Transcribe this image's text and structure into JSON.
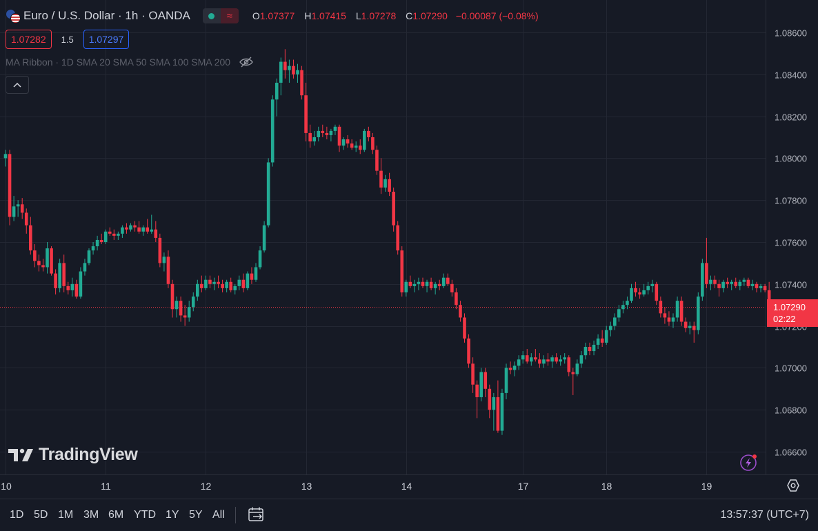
{
  "header": {
    "symbol_title": "Euro / U.S. Dollar · 1h · OANDA",
    "ohlc": {
      "o_label": "O",
      "o_value": "1.07377",
      "h_label": "H",
      "h_value": "1.07415",
      "l_label": "L",
      "l_value": "1.07278",
      "c_label": "C",
      "c_value": "1.07290",
      "change": "−0.00087 (−0.08%)"
    }
  },
  "trade": {
    "bid": "1.07282",
    "spread": "1.5",
    "ask": "1.07297"
  },
  "indicator": {
    "label": "MA Ribbon · 1D SMA 20 SMA 50 SMA 100 SMA 200"
  },
  "last_price": {
    "value": "1.07290",
    "countdown": "02:22"
  },
  "brand": {
    "name": "TradingView"
  },
  "timeframes": [
    "1D",
    "5D",
    "1M",
    "3M",
    "6M",
    "YTD",
    "1Y",
    "5Y",
    "All"
  ],
  "clock": "13:57:37 (UTC+7)",
  "colors": {
    "up": "#22ab94",
    "down": "#f23645",
    "background": "#161a25",
    "grid": "#232733",
    "axis_text": "#b2b5be"
  },
  "chart_data": {
    "type": "candlestick",
    "interval": "1h",
    "y_ticks": [
      "1.08600",
      "1.08400",
      "1.08200",
      "1.08000",
      "1.07800",
      "1.07600",
      "1.07400",
      "1.07200",
      "1.07000",
      "1.06800",
      "1.06600"
    ],
    "ylim": [
      1.0652,
      1.0869
    ],
    "x_ticks": [
      {
        "label": "10",
        "bar": 0
      },
      {
        "label": "11",
        "bar": 24
      },
      {
        "label": "12",
        "bar": 48
      },
      {
        "label": "13",
        "bar": 72
      },
      {
        "label": "14",
        "bar": 96
      },
      {
        "label": "17",
        "bar": 124
      },
      {
        "label": "18",
        "bar": 144
      },
      {
        "label": "19",
        "bar": 168
      }
    ],
    "candles": [
      [
        1.08,
        1.0804,
        1.0796,
        1.0802
      ],
      [
        1.0802,
        1.0804,
        1.0768,
        1.0772
      ],
      [
        1.0772,
        1.0782,
        1.077,
        1.0777
      ],
      [
        1.0777,
        1.078,
        1.0772,
        1.0778
      ],
      [
        1.0778,
        1.0781,
        1.0771,
        1.0774
      ],
      [
        1.0774,
        1.0776,
        1.0764,
        1.0768
      ],
      [
        1.0768,
        1.0772,
        1.0754,
        1.0756
      ],
      [
        1.0756,
        1.0759,
        1.0748,
        1.0751
      ],
      [
        1.0751,
        1.0754,
        1.0746,
        1.0749
      ],
      [
        1.0749,
        1.0752,
        1.0746,
        1.0748
      ],
      [
        1.0748,
        1.076,
        1.0745,
        1.0757
      ],
      [
        1.0757,
        1.0758,
        1.0744,
        1.0745
      ],
      [
        1.0745,
        1.0747,
        1.0735,
        1.0738
      ],
      [
        1.0738,
        1.0752,
        1.0736,
        1.075
      ],
      [
        1.075,
        1.0754,
        1.0736,
        1.0739
      ],
      [
        1.0739,
        1.0741,
        1.0735,
        1.0737
      ],
      [
        1.0737,
        1.0743,
        1.0734,
        1.074
      ],
      [
        1.074,
        1.0742,
        1.0733,
        1.0734
      ],
      [
        1.0734,
        1.0748,
        1.0733,
        1.0746
      ],
      [
        1.0746,
        1.0752,
        1.0744,
        1.075
      ],
      [
        1.075,
        1.0757,
        1.0749,
        1.0756
      ],
      [
        1.0756,
        1.076,
        1.0754,
        1.0758
      ],
      [
        1.0758,
        1.0763,
        1.0756,
        1.0761
      ],
      [
        1.0761,
        1.0764,
        1.0759,
        1.076
      ],
      [
        1.076,
        1.0766,
        1.0759,
        1.0765
      ],
      [
        1.0765,
        1.0767,
        1.0763,
        1.0764
      ],
      [
        1.0764,
        1.0766,
        1.0761,
        1.0763
      ],
      [
        1.0763,
        1.0765,
        1.0761,
        1.0764
      ],
      [
        1.0764,
        1.0768,
        1.0762,
        1.0767
      ],
      [
        1.0767,
        1.0769,
        1.0764,
        1.0766
      ],
      [
        1.0766,
        1.0769,
        1.0765,
        1.0768
      ],
      [
        1.0768,
        1.077,
        1.0765,
        1.0767
      ],
      [
        1.0767,
        1.077,
        1.0764,
        1.0765
      ],
      [
        1.0765,
        1.0768,
        1.0763,
        1.0767
      ],
      [
        1.0767,
        1.0771,
        1.0764,
        1.0765
      ],
      [
        1.0765,
        1.0773,
        1.0764,
        1.0766
      ],
      [
        1.0766,
        1.077,
        1.076,
        1.0762
      ],
      [
        1.0762,
        1.0764,
        1.0748,
        1.075
      ],
      [
        1.075,
        1.0755,
        1.0746,
        1.0753
      ],
      [
        1.0753,
        1.0756,
        1.0738,
        1.074
      ],
      [
        1.074,
        1.0742,
        1.0724,
        1.0728
      ],
      [
        1.0728,
        1.0734,
        1.0724,
        1.0732
      ],
      [
        1.0732,
        1.0734,
        1.0722,
        1.0725
      ],
      [
        1.0725,
        1.073,
        1.072,
        1.0724
      ],
      [
        1.0724,
        1.0732,
        1.0722,
        1.0729
      ],
      [
        1.0729,
        1.0736,
        1.0727,
        1.0734
      ],
      [
        1.0734,
        1.0742,
        1.0732,
        1.074
      ],
      [
        1.074,
        1.0744,
        1.0736,
        1.0738
      ],
      [
        1.0738,
        1.0744,
        1.0737,
        1.0742
      ],
      [
        1.0742,
        1.0744,
        1.0738,
        1.074
      ],
      [
        1.074,
        1.0743,
        1.0737,
        1.0741
      ],
      [
        1.0741,
        1.0744,
        1.0738,
        1.074
      ],
      [
        1.074,
        1.0742,
        1.0736,
        1.0738
      ],
      [
        1.0738,
        1.0742,
        1.0736,
        1.0741
      ],
      [
        1.0741,
        1.0743,
        1.0736,
        1.0737
      ],
      [
        1.0737,
        1.074,
        1.0735,
        1.0739
      ],
      [
        1.0739,
        1.0744,
        1.0737,
        1.0742
      ],
      [
        1.0742,
        1.0745,
        1.0736,
        1.0738
      ],
      [
        1.0738,
        1.0746,
        1.0737,
        1.0745
      ],
      [
        1.0745,
        1.0748,
        1.074,
        1.0742
      ],
      [
        1.0742,
        1.075,
        1.0741,
        1.0748
      ],
      [
        1.0748,
        1.0758,
        1.0747,
        1.0756
      ],
      [
        1.0756,
        1.077,
        1.0755,
        1.0768
      ],
      [
        1.0768,
        1.08,
        1.0767,
        1.0798
      ],
      [
        1.0798,
        1.083,
        1.0796,
        1.0828
      ],
      [
        1.0828,
        1.0838,
        1.082,
        1.0836
      ],
      [
        1.0836,
        1.0848,
        1.083,
        1.0846
      ],
      [
        1.0846,
        1.0852,
        1.0838,
        1.0842
      ],
      [
        1.0842,
        1.0847,
        1.0836,
        1.0844
      ],
      [
        1.0844,
        1.0847,
        1.0838,
        1.084
      ],
      [
        1.084,
        1.0845,
        1.0836,
        1.0842
      ],
      [
        1.0842,
        1.0844,
        1.0828,
        1.083
      ],
      [
        1.083,
        1.0836,
        1.0808,
        1.0812
      ],
      [
        1.0812,
        1.0816,
        1.0805,
        1.0808
      ],
      [
        1.0808,
        1.0813,
        1.0806,
        1.081
      ],
      [
        1.081,
        1.0815,
        1.0808,
        1.0813
      ],
      [
        1.0813,
        1.0816,
        1.081,
        1.0812
      ],
      [
        1.0812,
        1.0815,
        1.0809,
        1.0811
      ],
      [
        1.0811,
        1.0814,
        1.0808,
        1.0813
      ],
      [
        1.0813,
        1.0816,
        1.0811,
        1.0815
      ],
      [
        1.0815,
        1.0816,
        1.0803,
        1.0806
      ],
      [
        1.0806,
        1.081,
        1.0804,
        1.0809
      ],
      [
        1.0809,
        1.0811,
        1.0805,
        1.0807
      ],
      [
        1.0807,
        1.0809,
        1.0804,
        1.0805
      ],
      [
        1.0805,
        1.0808,
        1.0803,
        1.0806
      ],
      [
        1.0806,
        1.0809,
        1.0802,
        1.0804
      ],
      [
        1.0804,
        1.0814,
        1.0803,
        1.0813
      ],
      [
        1.0813,
        1.0815,
        1.0808,
        1.081
      ],
      [
        1.081,
        1.0812,
        1.0802,
        1.0804
      ],
      [
        1.0804,
        1.0806,
        1.0792,
        1.0794
      ],
      [
        1.0794,
        1.08,
        1.0783,
        1.0786
      ],
      [
        1.0786,
        1.0792,
        1.0784,
        1.079
      ],
      [
        1.079,
        1.0793,
        1.0782,
        1.0784
      ],
      [
        1.0784,
        1.0786,
        1.0765,
        1.0768
      ],
      [
        1.0768,
        1.077,
        1.0754,
        1.0756
      ],
      [
        1.0756,
        1.0758,
        1.0734,
        1.0736
      ],
      [
        1.0736,
        1.0742,
        1.0734,
        1.0741
      ],
      [
        1.0741,
        1.0744,
        1.0738,
        1.0739
      ],
      [
        1.0739,
        1.0742,
        1.0736,
        1.074
      ],
      [
        1.074,
        1.0743,
        1.0737,
        1.0741
      ],
      [
        1.0741,
        1.0743,
        1.0738,
        1.0739
      ],
      [
        1.0739,
        1.0742,
        1.0736,
        1.0741
      ],
      [
        1.0741,
        1.0743,
        1.0737,
        1.0738
      ],
      [
        1.0738,
        1.0741,
        1.0735,
        1.074
      ],
      [
        1.074,
        1.0742,
        1.0737,
        1.0739
      ],
      [
        1.0739,
        1.0745,
        1.0738,
        1.0743
      ],
      [
        1.0743,
        1.0745,
        1.0739,
        1.074
      ],
      [
        1.074,
        1.0742,
        1.0734,
        1.0736
      ],
      [
        1.0736,
        1.0738,
        1.0728,
        1.073
      ],
      [
        1.073,
        1.0732,
        1.0722,
        1.0724
      ],
      [
        1.0724,
        1.0726,
        1.0712,
        1.0714
      ],
      [
        1.0714,
        1.0716,
        1.07,
        1.0702
      ],
      [
        1.0702,
        1.0705,
        1.0688,
        1.0692
      ],
      [
        1.0692,
        1.0694,
        1.0676,
        1.0686
      ],
      [
        1.0686,
        1.07,
        1.0684,
        1.0698
      ],
      [
        1.0698,
        1.07,
        1.0686,
        1.069
      ],
      [
        1.069,
        1.0692,
        1.0676,
        1.068
      ],
      [
        1.068,
        1.0688,
        1.067,
        1.0686
      ],
      [
        1.0686,
        1.0694,
        1.0669,
        1.067
      ],
      [
        1.067,
        1.069,
        1.0668,
        1.0688
      ],
      [
        1.0688,
        1.0702,
        1.0685,
        1.07
      ],
      [
        1.07,
        1.0703,
        1.0697,
        1.0699
      ],
      [
        1.0699,
        1.0703,
        1.0696,
        1.0701
      ],
      [
        1.0701,
        1.0706,
        1.0699,
        1.0704
      ],
      [
        1.0704,
        1.0708,
        1.0702,
        1.0706
      ],
      [
        1.0706,
        1.0709,
        1.0702,
        1.0703
      ],
      [
        1.0703,
        1.0707,
        1.0701,
        1.0705
      ],
      [
        1.0705,
        1.0709,
        1.0703,
        1.0704
      ],
      [
        1.0704,
        1.0707,
        1.07,
        1.0702
      ],
      [
        1.0702,
        1.0706,
        1.07,
        1.0704
      ],
      [
        1.0704,
        1.0707,
        1.0701,
        1.0703
      ],
      [
        1.0703,
        1.0706,
        1.07,
        1.0705
      ],
      [
        1.0705,
        1.0707,
        1.0702,
        1.0703
      ],
      [
        1.0703,
        1.0706,
        1.0701,
        1.0704
      ],
      [
        1.0704,
        1.0707,
        1.0702,
        1.0705
      ],
      [
        1.0705,
        1.0706,
        1.0696,
        1.0698
      ],
      [
        1.0698,
        1.07,
        1.0687,
        1.0697
      ],
      [
        1.0697,
        1.0704,
        1.0696,
        1.0702
      ],
      [
        1.0702,
        1.0708,
        1.07,
        1.0706
      ],
      [
        1.0706,
        1.0712,
        1.0704,
        1.071
      ],
      [
        1.071,
        1.0712,
        1.0706,
        1.0708
      ],
      [
        1.0708,
        1.0713,
        1.0706,
        1.0711
      ],
      [
        1.0711,
        1.0716,
        1.0709,
        1.0714
      ],
      [
        1.0714,
        1.0718,
        1.071,
        1.0712
      ],
      [
        1.0712,
        1.072,
        1.0711,
        1.0718
      ],
      [
        1.0718,
        1.0722,
        1.0715,
        1.072
      ],
      [
        1.072,
        1.0726,
        1.0718,
        1.0724
      ],
      [
        1.0724,
        1.073,
        1.0722,
        1.0728
      ],
      [
        1.0728,
        1.0732,
        1.0726,
        1.073
      ],
      [
        1.073,
        1.0734,
        1.0728,
        1.0732
      ],
      [
        1.0732,
        1.074,
        1.0731,
        1.0738
      ],
      [
        1.0738,
        1.0741,
        1.0734,
        1.0736
      ],
      [
        1.0736,
        1.0738,
        1.0733,
        1.0735
      ],
      [
        1.0735,
        1.074,
        1.0734,
        1.0737
      ],
      [
        1.0737,
        1.0741,
        1.0735,
        1.0739
      ],
      [
        1.0739,
        1.0742,
        1.0736,
        1.074
      ],
      [
        1.074,
        1.0741,
        1.073,
        1.0732
      ],
      [
        1.0732,
        1.0734,
        1.0724,
        1.0726
      ],
      [
        1.0726,
        1.0729,
        1.0721,
        1.0724
      ],
      [
        1.0724,
        1.0727,
        1.072,
        1.0722
      ],
      [
        1.0722,
        1.0726,
        1.0719,
        1.0724
      ],
      [
        1.0724,
        1.0734,
        1.0722,
        1.0732
      ],
      [
        1.0732,
        1.0734,
        1.072,
        1.0722
      ],
      [
        1.0722,
        1.0724,
        1.0717,
        1.0719
      ],
      [
        1.0719,
        1.0722,
        1.0716,
        1.072
      ],
      [
        1.072,
        1.0722,
        1.0712,
        1.0718
      ],
      [
        1.0718,
        1.0736,
        1.0716,
        1.0734
      ],
      [
        1.0734,
        1.0752,
        1.0732,
        1.075
      ],
      [
        1.075,
        1.0762,
        1.0738,
        1.074
      ],
      [
        1.074,
        1.0744,
        1.0737,
        1.0742
      ],
      [
        1.0742,
        1.0744,
        1.0738,
        1.074
      ],
      [
        1.074,
        1.0742,
        1.0734,
        1.0738
      ],
      [
        1.0738,
        1.0742,
        1.0736,
        1.0741
      ],
      [
        1.0741,
        1.0743,
        1.0738,
        1.074
      ],
      [
        1.074,
        1.0742,
        1.0737,
        1.0741
      ],
      [
        1.0741,
        1.0743,
        1.0738,
        1.0739
      ],
      [
        1.0739,
        1.0742,
        1.0737,
        1.0741
      ],
      [
        1.0741,
        1.0743,
        1.0739,
        1.0742
      ],
      [
        1.0742,
        1.0743,
        1.0738,
        1.0739
      ],
      [
        1.0739,
        1.0742,
        1.0737,
        1.074
      ],
      [
        1.074,
        1.0741,
        1.0736,
        1.0738
      ],
      [
        1.0738,
        1.074,
        1.0736,
        1.0739
      ],
      [
        1.0739,
        1.074,
        1.0736,
        1.0737
      ],
      [
        1.0737,
        1.0741,
        1.0728,
        1.0729
      ]
    ]
  }
}
